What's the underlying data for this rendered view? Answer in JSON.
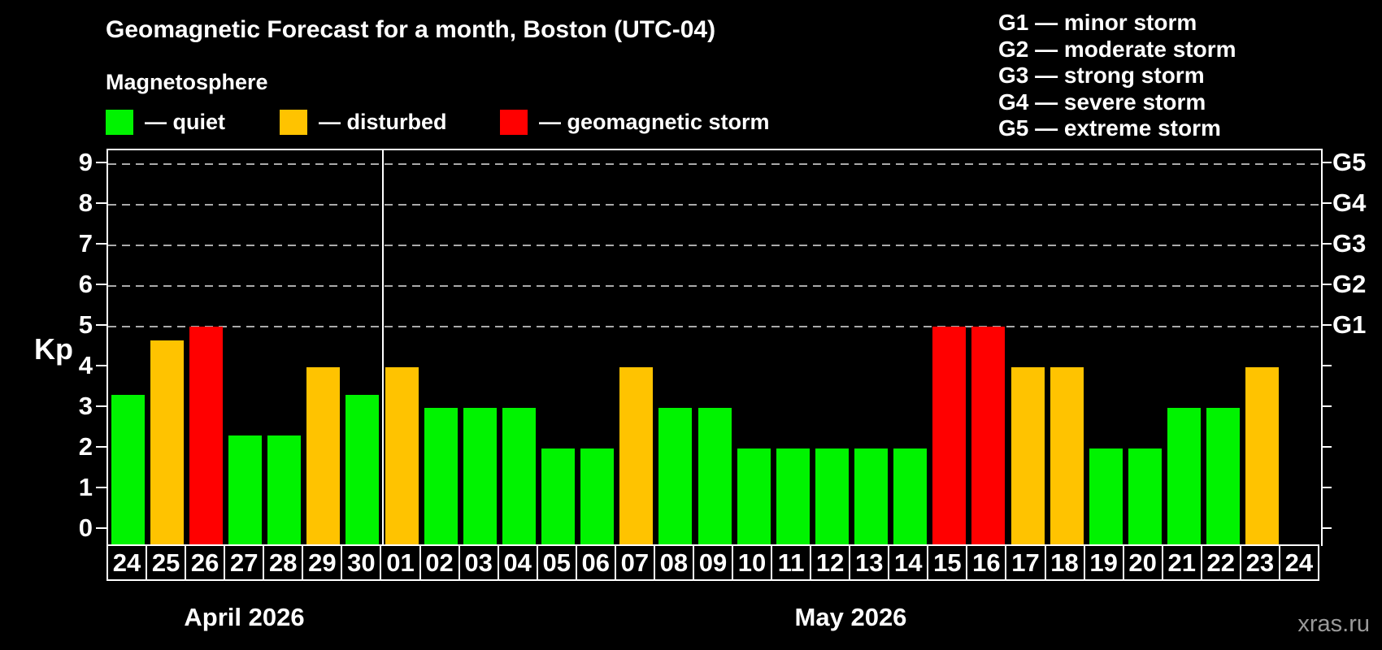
{
  "header": {
    "title": "Geomagnetic Forecast for a month, Boston (UTC-04)",
    "subtitle": "Magnetosphere"
  },
  "legend": {
    "quiet": "— quiet",
    "disturbed": "— disturbed",
    "storm": "— geomagnetic storm"
  },
  "g_scale_legend": [
    "G1 — minor storm",
    "G2 — moderate storm",
    "G3 — strong storm",
    "G4 — severe storm",
    "G5 — extreme storm"
  ],
  "y_axis": {
    "label": "Kp",
    "ticks": [
      0,
      1,
      2,
      3,
      4,
      5,
      6,
      7,
      8,
      9
    ]
  },
  "right_axis": {
    "labels": [
      {
        "kp": 5,
        "text": "G1"
      },
      {
        "kp": 6,
        "text": "G2"
      },
      {
        "kp": 7,
        "text": "G3"
      },
      {
        "kp": 8,
        "text": "G4"
      },
      {
        "kp": 9,
        "text": "G5"
      }
    ]
  },
  "months": {
    "april": "April 2026",
    "may": "May 2026"
  },
  "watermark": "xras.ru",
  "colors": {
    "quiet": "#00f300",
    "disturbed": "#ffc300",
    "storm": "#ff0000",
    "background": "#000000",
    "axis": "#ffffff",
    "grid": "#aaaaaa",
    "watermark": "#9a9a9a"
  },
  "chart_data": {
    "type": "bar",
    "title": "Geomagnetic Forecast for a month, Boston (UTC-04)",
    "ylabel": "Kp",
    "ylim": [
      0,
      9.4
    ],
    "grid": "horizontal dashed gridlines at Kp 5,6,7,8,9 (G1–G5 storm levels)",
    "x_sections": [
      {
        "label": "April 2026",
        "days": 7
      },
      {
        "label": "May 2026",
        "days": 24
      }
    ],
    "bars": [
      {
        "month": "April",
        "day": "24",
        "kp": 3.33,
        "status": "quiet"
      },
      {
        "month": "April",
        "day": "25",
        "kp": 4.67,
        "status": "disturbed"
      },
      {
        "month": "April",
        "day": "26",
        "kp": 5,
        "status": "storm"
      },
      {
        "month": "April",
        "day": "27",
        "kp": 2.33,
        "status": "quiet"
      },
      {
        "month": "April",
        "day": "28",
        "kp": 2.33,
        "status": "quiet"
      },
      {
        "month": "April",
        "day": "29",
        "kp": 4,
        "status": "disturbed"
      },
      {
        "month": "April",
        "day": "30",
        "kp": 3.33,
        "status": "quiet"
      },
      {
        "month": "May",
        "day": "01",
        "kp": 4,
        "status": "disturbed"
      },
      {
        "month": "May",
        "day": "02",
        "kp": 3,
        "status": "quiet"
      },
      {
        "month": "May",
        "day": "03",
        "kp": 3,
        "status": "quiet"
      },
      {
        "month": "May",
        "day": "04",
        "kp": 3,
        "status": "quiet"
      },
      {
        "month": "May",
        "day": "05",
        "kp": 2,
        "status": "quiet"
      },
      {
        "month": "May",
        "day": "06",
        "kp": 2,
        "status": "quiet"
      },
      {
        "month": "May",
        "day": "07",
        "kp": 4,
        "status": "disturbed"
      },
      {
        "month": "May",
        "day": "08",
        "kp": 3,
        "status": "quiet"
      },
      {
        "month": "May",
        "day": "09",
        "kp": 3,
        "status": "quiet"
      },
      {
        "month": "May",
        "day": "10",
        "kp": 2,
        "status": "quiet"
      },
      {
        "month": "May",
        "day": "11",
        "kp": 2,
        "status": "quiet"
      },
      {
        "month": "May",
        "day": "12",
        "kp": 2,
        "status": "quiet"
      },
      {
        "month": "May",
        "day": "13",
        "kp": 2,
        "status": "quiet"
      },
      {
        "month": "May",
        "day": "14",
        "kp": 2,
        "status": "quiet"
      },
      {
        "month": "May",
        "day": "15",
        "kp": 5,
        "status": "storm"
      },
      {
        "month": "May",
        "day": "16",
        "kp": 5,
        "status": "storm"
      },
      {
        "month": "May",
        "day": "17",
        "kp": 4,
        "status": "disturbed"
      },
      {
        "month": "May",
        "day": "18",
        "kp": 4,
        "status": "disturbed"
      },
      {
        "month": "May",
        "day": "19",
        "kp": 2,
        "status": "quiet"
      },
      {
        "month": "May",
        "day": "20",
        "kp": 2,
        "status": "quiet"
      },
      {
        "month": "May",
        "day": "21",
        "kp": 3,
        "status": "quiet"
      },
      {
        "month": "May",
        "day": "22",
        "kp": 3,
        "status": "quiet"
      },
      {
        "month": "May",
        "day": "23",
        "kp": 4,
        "status": "disturbed"
      },
      {
        "month": "May",
        "day": "24",
        "kp": null,
        "status": "none"
      }
    ]
  }
}
